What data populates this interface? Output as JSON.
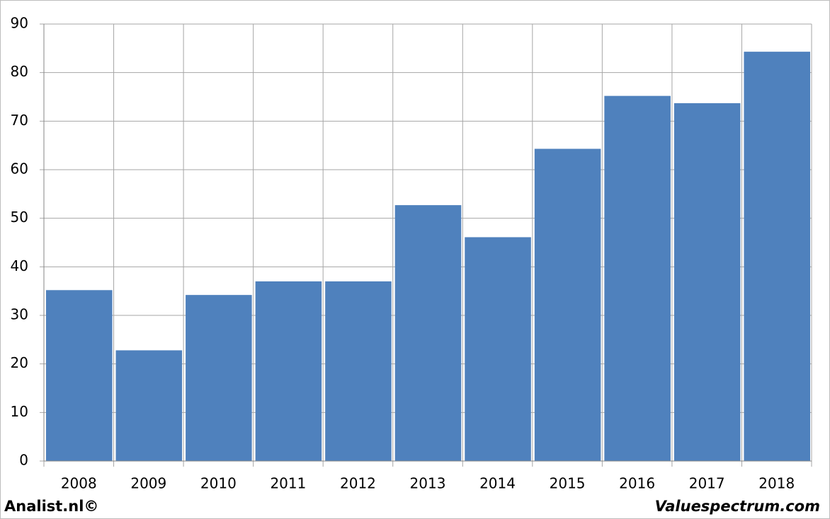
{
  "chart_data": {
    "type": "bar",
    "categories": [
      "2008",
      "2009",
      "2010",
      "2011",
      "2012",
      "2013",
      "2014",
      "2015",
      "2016",
      "2017",
      "2018"
    ],
    "values": [
      35.2,
      22.8,
      34.2,
      37,
      37,
      52.7,
      46.1,
      64.3,
      75.2,
      73.7,
      84.3
    ],
    "color": "#4f81bd",
    "ylim": [
      0,
      90
    ],
    "yticks": [
      0,
      10,
      20,
      30,
      40,
      50,
      60,
      70,
      80,
      90
    ],
    "grid": true,
    "annotations": [
      "Analist.nl©",
      "Valuespectrum.com"
    ]
  }
}
